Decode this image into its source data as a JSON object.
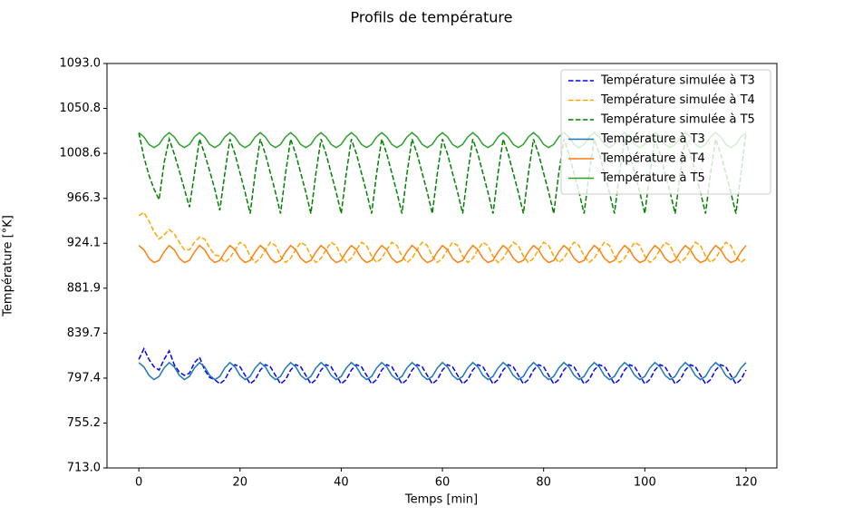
{
  "chart_data": {
    "type": "line",
    "title": "Profils de température",
    "x_label": "Temps [min]",
    "y_label": "Température [°K]",
    "xlim": [
      -6.3,
      126.1
    ],
    "xticks": [
      0,
      20,
      40,
      60,
      80,
      100,
      120
    ],
    "ylim": [
      713,
      1093
    ],
    "yticks": [
      {
        "value": 713,
        "label": "713.0"
      },
      755.2,
      797.4,
      839.7,
      881.9,
      924.1,
      966.3,
      1008.6,
      1050.8,
      {
        "value": 1093,
        "label": "1093.0"
      }
    ],
    "legend": "upper right",
    "grid": false,
    "x": [
      0,
      1,
      2,
      3,
      4,
      5,
      6,
      7,
      8,
      9,
      10,
      11,
      12,
      13,
      14,
      15,
      16,
      17,
      18,
      19,
      20,
      21,
      22,
      23,
      24,
      25,
      26,
      27,
      28,
      29,
      30,
      31,
      32,
      33,
      34,
      35,
      36,
      37,
      38,
      39,
      40,
      41,
      42,
      43,
      44,
      45,
      46,
      47,
      48,
      49,
      50,
      51,
      52,
      53,
      54,
      55,
      56,
      57,
      58,
      59,
      60,
      61,
      62,
      63,
      64,
      65,
      66,
      67,
      68,
      69,
      70,
      71,
      72,
      73,
      74,
      75,
      76,
      77,
      78,
      79,
      80,
      81,
      82,
      83,
      84,
      85,
      86,
      87,
      88,
      89,
      90,
      91,
      92,
      93,
      94,
      95,
      96,
      97,
      98,
      99,
      100,
      101,
      102,
      103,
      104,
      105,
      106,
      107,
      108,
      109,
      110,
      111,
      112,
      113,
      114,
      115,
      116,
      117,
      118,
      119,
      120
    ],
    "series": [
      {
        "name": "Température simulée à T3",
        "color": "#0000ff",
        "linestyle": "dashed",
        "values": [
          815,
          825,
          815,
          808,
          805,
          815,
          823,
          810,
          803,
          800,
          802,
          812,
          817,
          805,
          798,
          796,
          792,
          796,
          805,
          810,
          808,
          800,
          792,
          796,
          805,
          810,
          808,
          800,
          792,
          796,
          805,
          810,
          808,
          800,
          792,
          796,
          805,
          810,
          808,
          800,
          792,
          796,
          805,
          810,
          808,
          800,
          792,
          796,
          805,
          810,
          808,
          800,
          792,
          796,
          805,
          810,
          808,
          800,
          792,
          796,
          805,
          810,
          808,
          800,
          792,
          796,
          805,
          810,
          808,
          800,
          792,
          796,
          805,
          810,
          808,
          800,
          792,
          796,
          805,
          810,
          808,
          800,
          792,
          796,
          805,
          810,
          808,
          800,
          792,
          796,
          805,
          810,
          808,
          800,
          792,
          796,
          805,
          810,
          808,
          800,
          792,
          796,
          805,
          810,
          808,
          800,
          792,
          796,
          805,
          810,
          808,
          800,
          792,
          796,
          805,
          810,
          808,
          800,
          792,
          796,
          805
        ]
      },
      {
        "name": "Température simulée à T4",
        "color": "#ffa500",
        "linestyle": "dashed",
        "values": [
          950,
          953,
          945,
          935,
          928,
          932,
          937,
          933,
          925,
          918,
          918,
          925,
          930,
          928,
          920,
          913,
          912,
          906,
          910,
          918,
          925,
          922,
          912,
          906,
          910,
          918,
          925,
          922,
          912,
          906,
          910,
          918,
          925,
          922,
          912,
          906,
          910,
          918,
          925,
          922,
          912,
          906,
          910,
          918,
          925,
          922,
          912,
          906,
          910,
          918,
          925,
          922,
          912,
          906,
          910,
          918,
          925,
          922,
          912,
          906,
          910,
          918,
          925,
          922,
          912,
          906,
          910,
          918,
          925,
          922,
          912,
          906,
          910,
          918,
          925,
          922,
          912,
          906,
          910,
          918,
          925,
          922,
          912,
          906,
          910,
          918,
          925,
          922,
          912,
          906,
          910,
          918,
          925,
          922,
          912,
          906,
          910,
          918,
          925,
          922,
          912,
          906,
          910,
          918,
          925,
          922,
          912,
          906,
          910,
          918,
          925,
          922,
          912,
          906,
          910,
          918,
          925,
          922,
          912,
          906,
          910
        ]
      },
      {
        "name": "Température simulée à T5",
        "color": "#008000",
        "linestyle": "dashed",
        "values": [
          1028,
          1005,
          988,
          975,
          965,
          1000,
          1022,
          1008,
          992,
          975,
          958,
          990,
          1022,
          1008,
          992,
          975,
          955,
          990,
          1022,
          1008,
          990,
          972,
          952,
          990,
          1022,
          1008,
          990,
          972,
          952,
          990,
          1022,
          1008,
          990,
          972,
          952,
          990,
          1022,
          1008,
          990,
          972,
          952,
          990,
          1022,
          1008,
          990,
          972,
          952,
          990,
          1022,
          1008,
          990,
          972,
          952,
          990,
          1022,
          1008,
          990,
          972,
          952,
          990,
          1022,
          1008,
          990,
          972,
          952,
          990,
          1022,
          1008,
          990,
          972,
          952,
          990,
          1022,
          1008,
          990,
          972,
          952,
          990,
          1022,
          1008,
          990,
          972,
          952,
          990,
          1022,
          1008,
          990,
          972,
          952,
          990,
          1022,
          1008,
          990,
          972,
          952,
          990,
          1022,
          1008,
          990,
          972,
          952,
          990,
          1022,
          1008,
          990,
          972,
          952,
          990,
          1022,
          1008,
          990,
          972,
          952,
          990,
          1022,
          1008,
          990,
          972,
          952,
          990,
          1028
        ]
      },
      {
        "name": "Température à T3",
        "color": "#1f77b4",
        "linestyle": "solid",
        "values": [
          812,
          808,
          800,
          796,
          799,
          807,
          812,
          808,
          800,
          796,
          799,
          807,
          812,
          808,
          800,
          796,
          799,
          807,
          812,
          808,
          800,
          796,
          799,
          807,
          812,
          808,
          800,
          796,
          799,
          807,
          812,
          808,
          800,
          796,
          799,
          807,
          812,
          808,
          800,
          796,
          799,
          807,
          812,
          808,
          800,
          796,
          799,
          807,
          812,
          808,
          800,
          796,
          799,
          807,
          812,
          808,
          800,
          796,
          799,
          807,
          812,
          808,
          800,
          796,
          799,
          807,
          812,
          808,
          800,
          796,
          799,
          807,
          812,
          808,
          800,
          796,
          799,
          807,
          812,
          808,
          800,
          796,
          799,
          807,
          812,
          808,
          800,
          796,
          799,
          807,
          812,
          808,
          800,
          796,
          799,
          807,
          812,
          808,
          800,
          796,
          799,
          807,
          812,
          808,
          800,
          796,
          799,
          807,
          812,
          808,
          800,
          796,
          799,
          807,
          812,
          808,
          800,
          796,
          799,
          807,
          812
        ]
      },
      {
        "name": "Température à T4",
        "color": "#ff7f0e",
        "linestyle": "solid",
        "values": [
          922,
          918,
          910,
          906,
          908,
          916,
          922,
          918,
          910,
          906,
          908,
          916,
          922,
          918,
          910,
          906,
          908,
          916,
          922,
          918,
          910,
          906,
          908,
          916,
          922,
          918,
          910,
          906,
          908,
          916,
          922,
          918,
          910,
          906,
          908,
          916,
          922,
          918,
          910,
          906,
          908,
          916,
          922,
          918,
          910,
          906,
          908,
          916,
          922,
          918,
          910,
          906,
          908,
          916,
          922,
          918,
          910,
          906,
          908,
          916,
          922,
          918,
          910,
          906,
          908,
          916,
          922,
          918,
          910,
          906,
          908,
          916,
          922,
          918,
          910,
          906,
          908,
          916,
          922,
          918,
          910,
          906,
          908,
          916,
          922,
          918,
          910,
          906,
          908,
          916,
          922,
          918,
          910,
          906,
          908,
          916,
          922,
          918,
          910,
          906,
          908,
          916,
          922,
          918,
          910,
          906,
          908,
          916,
          922,
          918,
          910,
          906,
          908,
          916,
          922,
          918,
          910,
          906,
          908,
          916,
          922
        ]
      },
      {
        "name": "Température à T5",
        "color": "#2ca02c",
        "linestyle": "solid",
        "values": [
          1028,
          1024,
          1017,
          1014,
          1017,
          1024,
          1028,
          1024,
          1017,
          1014,
          1017,
          1024,
          1028,
          1024,
          1017,
          1014,
          1017,
          1024,
          1028,
          1024,
          1017,
          1014,
          1017,
          1024,
          1028,
          1024,
          1017,
          1014,
          1017,
          1024,
          1028,
          1024,
          1017,
          1014,
          1017,
          1024,
          1028,
          1024,
          1017,
          1014,
          1017,
          1024,
          1028,
          1024,
          1017,
          1014,
          1017,
          1024,
          1028,
          1024,
          1017,
          1014,
          1017,
          1024,
          1028,
          1024,
          1017,
          1014,
          1017,
          1024,
          1028,
          1024,
          1017,
          1014,
          1017,
          1024,
          1028,
          1024,
          1017,
          1014,
          1017,
          1024,
          1028,
          1024,
          1017,
          1014,
          1017,
          1024,
          1028,
          1024,
          1017,
          1014,
          1017,
          1024,
          1028,
          1024,
          1017,
          1014,
          1017,
          1024,
          1028,
          1024,
          1017,
          1014,
          1017,
          1024,
          1028,
          1024,
          1017,
          1014,
          1017,
          1024,
          1028,
          1024,
          1017,
          1014,
          1017,
          1024,
          1028,
          1024,
          1017,
          1014,
          1017,
          1024,
          1028,
          1024,
          1017,
          1014,
          1017,
          1024,
          1028
        ]
      }
    ]
  }
}
